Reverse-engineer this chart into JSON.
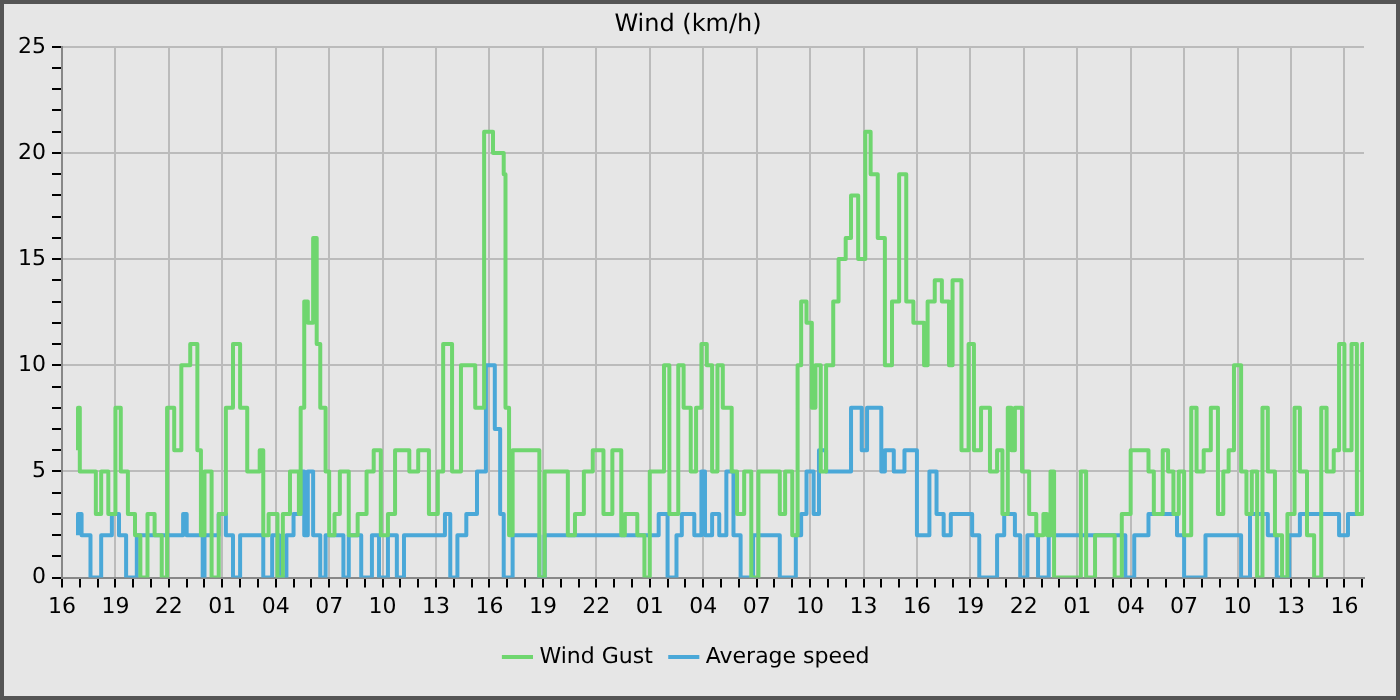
{
  "chart_data": {
    "type": "step",
    "title": "Wind (km/h)",
    "legend": "bottom",
    "grid": true,
    "xlim": [
      "--05-01T16:00",
      "--05-04T17:06"
    ],
    "ylim": [
      0,
      25
    ],
    "xticks": [
      {
        "value": "--05-01T16:00",
        "label": "16"
      },
      {
        "value": "--05-01T17:00",
        "label": null
      },
      {
        "value": "--05-01T18:00",
        "label": null
      },
      {
        "value": "--05-01T19:00",
        "label": "19"
      },
      {
        "value": "--05-01T20:00",
        "label": null
      },
      {
        "value": "--05-01T21:00",
        "label": null
      },
      {
        "value": "--05-01T22:00",
        "label": "22"
      },
      {
        "value": "--05-01T23:00",
        "label": null
      },
      {
        "value": "--05-02T00:00",
        "label": null
      },
      {
        "value": "--05-02T01:00",
        "label": "01"
      },
      {
        "value": "--05-02T02:00",
        "label": null
      },
      {
        "value": "--05-02T03:00",
        "label": null
      },
      {
        "value": "--05-02T04:00",
        "label": "04"
      },
      {
        "value": "--05-02T05:00",
        "label": null
      },
      {
        "value": "--05-02T06:00",
        "label": null
      },
      {
        "value": "--05-02T07:00",
        "label": "07"
      },
      {
        "value": "--05-02T08:00",
        "label": null
      },
      {
        "value": "--05-02T09:00",
        "label": null
      },
      {
        "value": "--05-02T10:00",
        "label": "10"
      },
      {
        "value": "--05-02T11:00",
        "label": null
      },
      {
        "value": "--05-02T12:00",
        "label": null
      },
      {
        "value": "--05-02T13:00",
        "label": "13"
      },
      {
        "value": "--05-02T14:00",
        "label": null
      },
      {
        "value": "--05-02T15:00",
        "label": null
      },
      {
        "value": "--05-02T16:00",
        "label": "16"
      },
      {
        "value": "--05-02T17:00",
        "label": null
      },
      {
        "value": "--05-02T18:00",
        "label": null
      },
      {
        "value": "--05-02T19:00",
        "label": "19"
      },
      {
        "value": "--05-02T20:00",
        "label": null
      },
      {
        "value": "--05-02T21:00",
        "label": null
      },
      {
        "value": "--05-02T22:00",
        "label": "22"
      },
      {
        "value": "--05-02T23:00",
        "label": null
      },
      {
        "value": "--05-03T00:00",
        "label": null
      },
      {
        "value": "--05-03T01:00",
        "label": "01"
      },
      {
        "value": "--05-03T02:00",
        "label": null
      },
      {
        "value": "--05-03T03:00",
        "label": null
      },
      {
        "value": "--05-03T04:00",
        "label": "04"
      },
      {
        "value": "--05-03T05:00",
        "label": null
      },
      {
        "value": "--05-03T06:00",
        "label": null
      },
      {
        "value": "--05-03T07:00",
        "label": "07"
      },
      {
        "value": "--05-03T08:00",
        "label": null
      },
      {
        "value": "--05-03T09:00",
        "label": null
      },
      {
        "value": "--05-03T10:00",
        "label": "10"
      },
      {
        "value": "--05-03T11:00",
        "label": null
      },
      {
        "value": "--05-03T12:00",
        "label": null
      },
      {
        "value": "--05-03T13:00",
        "label": "13"
      },
      {
        "value": "--05-03T14:00",
        "label": null
      },
      {
        "value": "--05-03T15:00",
        "label": null
      },
      {
        "value": "--05-03T16:00",
        "label": "16"
      },
      {
        "value": "--05-03T17:00",
        "label": null
      },
      {
        "value": "--05-03T18:00",
        "label": null
      },
      {
        "value": "--05-03T19:00",
        "label": "19"
      },
      {
        "value": "--05-03T20:00",
        "label": null
      },
      {
        "value": "--05-03T21:00",
        "label": null
      },
      {
        "value": "--05-03T22:00",
        "label": "22"
      },
      {
        "value": "--05-03T23:00",
        "label": null
      },
      {
        "value": "--05-04T00:00",
        "label": null
      },
      {
        "value": "--05-04T01:00",
        "label": "01"
      },
      {
        "value": "--05-04T02:00",
        "label": null
      },
      {
        "value": "--05-04T03:00",
        "label": null
      },
      {
        "value": "--05-04T04:00",
        "label": "04"
      },
      {
        "value": "--05-04T05:00",
        "label": null
      },
      {
        "value": "--05-04T06:00",
        "label": null
      },
      {
        "value": "--05-04T07:00",
        "label": "07"
      },
      {
        "value": "--05-04T08:00",
        "label": null
      },
      {
        "value": "--05-04T09:00",
        "label": null
      },
      {
        "value": "--05-04T10:00",
        "label": "10"
      },
      {
        "value": "--05-04T11:00",
        "label": null
      },
      {
        "value": "--05-04T12:00",
        "label": null
      },
      {
        "value": "--05-04T13:00",
        "label": "13"
      },
      {
        "value": "--05-04T14:00",
        "label": null
      },
      {
        "value": "--05-04T15:00",
        "label": null
      },
      {
        "value": "--05-04T16:00",
        "label": "16"
      },
      {
        "value": "--05-04T17:00",
        "label": null
      }
    ],
    "yticks": [
      0,
      {
        "value": 1,
        "label": null
      },
      {
        "value": 2,
        "label": null
      },
      {
        "value": 3,
        "label": null
      },
      {
        "value": 4,
        "label": null
      },
      5,
      {
        "value": 6,
        "label": null
      },
      {
        "value": 7,
        "label": null
      },
      {
        "value": 8,
        "label": null
      },
      {
        "value": 9,
        "label": null
      },
      10,
      {
        "value": 11,
        "label": null
      },
      {
        "value": 12,
        "label": null
      },
      {
        "value": 13,
        "label": null
      },
      {
        "value": 14,
        "label": null
      },
      15,
      {
        "value": 16,
        "label": null
      },
      {
        "value": 17,
        "label": null
      },
      {
        "value": 18,
        "label": null
      },
      {
        "value": 19,
        "label": null
      },
      20,
      {
        "value": 21,
        "label": null
      },
      {
        "value": 22,
        "label": null
      },
      {
        "value": 23,
        "label": null
      },
      {
        "value": 24,
        "label": null
      },
      25
    ],
    "series": [
      {
        "name": "Wind Gust",
        "color": "#6fd66f",
        "x": [
          "--05-01T16:54",
          "--05-01T17:00",
          "--05-01T17:54",
          "--05-01T18:12",
          "--05-01T18:36",
          "--05-01T19:00",
          "--05-01T19:18",
          "--05-01T19:42",
          "--05-01T20:06",
          "--05-01T20:24",
          "--05-01T20:48",
          "--05-01T21:12",
          "--05-01T21:36",
          "--05-01T21:54",
          "--05-01T22:18",
          "--05-01T22:42",
          "--05-01T23:12",
          "--05-01T23:36",
          "--05-01T23:48",
          "--05-02T00:00",
          "--05-02T00:24",
          "--05-02T00:48",
          "--05-02T01:12",
          "--05-02T01:36",
          "--05-02T02:00",
          "--05-02T02:24",
          "--05-02T03:06",
          "--05-02T03:18",
          "--05-02T03:36",
          "--05-02T04:06",
          "--05-02T04:24",
          "--05-02T04:48",
          "--05-02T05:18",
          "--05-02T05:24",
          "--05-02T05:36",
          "--05-02T05:48",
          "--05-02T06:06",
          "--05-02T06:18",
          "--05-02T06:30",
          "--05-02T06:48",
          "--05-02T07:00",
          "--05-02T07:18",
          "--05-02T07:36",
          "--05-02T08:06",
          "--05-02T08:36",
          "--05-02T09:06",
          "--05-02T09:30",
          "--05-02T09:54",
          "--05-02T10:18",
          "--05-02T10:42",
          "--05-02T11:30",
          "--05-02T12:00",
          "--05-02T12:36",
          "--05-02T13:06",
          "--05-02T13:24",
          "--05-02T13:54",
          "--05-02T14:24",
          "--05-02T15:12",
          "--05-02T15:42",
          "--05-02T16:12",
          "--05-02T16:48",
          "--05-02T16:54",
          "--05-02T17:06",
          "--05-02T17:18",
          "--05-02T18:48",
          "--05-02T19:06",
          "--05-02T20:24",
          "--05-02T20:48",
          "--05-02T21:18",
          "--05-02T21:48",
          "--05-02T22:24",
          "--05-02T22:54",
          "--05-02T23:24",
          "--05-02T23:36",
          "--05-03T00:18",
          "--05-03T00:42",
          "--05-03T01:00",
          "--05-03T01:48",
          "--05-03T02:06",
          "--05-03T02:36",
          "--05-03T02:54",
          "--05-03T03:18",
          "--05-03T03:36",
          "--05-03T03:54",
          "--05-03T04:12",
          "--05-03T04:30",
          "--05-03T04:48",
          "--05-03T05:06",
          "--05-03T05:36",
          "--05-03T05:54",
          "--05-03T06:18",
          "--05-03T06:42",
          "--05-03T07:06",
          "--05-03T08:18",
          "--05-03T08:36",
          "--05-03T09:00",
          "--05-03T09:18",
          "--05-03T09:30",
          "--05-03T09:48",
          "--05-03T10:06",
          "--05-03T10:18",
          "--05-03T10:36",
          "--05-03T10:54",
          "--05-03T11:18",
          "--05-03T11:36",
          "--05-03T12:00",
          "--05-03T12:18",
          "--05-03T12:42",
          "--05-03T13:06",
          "--05-03T13:24",
          "--05-03T13:48",
          "--05-03T14:12",
          "--05-03T14:36",
          "--05-03T15:00",
          "--05-03T15:24",
          "--05-03T15:48",
          "--05-03T16:24",
          "--05-03T16:36",
          "--05-03T17:00",
          "--05-03T17:24",
          "--05-03T17:48",
          "--05-03T18:00",
          "--05-03T18:30",
          "--05-03T18:54",
          "--05-03T19:12",
          "--05-03T19:36",
          "--05-03T20:06",
          "--05-03T20:30",
          "--05-03T20:48",
          "--05-03T21:06",
          "--05-03T21:18",
          "--05-03T21:30",
          "--05-03T21:54",
          "--05-03T22:18",
          "--05-03T22:42",
          "--05-03T23:06",
          "--05-03T23:18",
          "--05-03T23:30",
          "--05-03T23:42",
          "--05-04T00:00",
          "--05-04T00:24",
          "--05-04T00:48",
          "--05-04T01:12",
          "--05-04T01:30",
          "--05-04T02:00",
          "--05-04T03:06",
          "--05-04T03:30",
          "--05-04T04:00",
          "--05-04T05:00",
          "--05-04T05:18",
          "--05-04T05:48",
          "--05-04T06:06",
          "--05-04T06:24",
          "--05-04T06:42",
          "--05-04T07:00",
          "--05-04T07:24",
          "--05-04T07:42",
          "--05-04T08:06",
          "--05-04T08:30",
          "--05-04T08:54",
          "--05-04T09:12",
          "--05-04T09:30",
          "--05-04T09:48",
          "--05-04T10:12",
          "--05-04T10:30",
          "--05-04T10:48",
          "--05-04T11:06",
          "--05-04T11:24",
          "--05-04T11:42",
          "--05-04T12:06",
          "--05-04T12:30",
          "--05-04T12:48",
          "--05-04T13:12",
          "--05-04T13:30",
          "--05-04T13:54",
          "--05-04T14:18",
          "--05-04T14:42",
          "--05-04T15:00",
          "--05-04T15:24",
          "--05-04T15:42",
          "--05-04T16:00",
          "--05-04T16:24",
          "--05-04T16:42",
          "--05-04T17:00",
          "--05-04T17:06"
        ],
        "values": [
          6,
          8,
          5,
          3,
          5,
          3,
          8,
          5,
          3,
          2,
          0,
          3,
          2,
          0,
          8,
          6,
          10,
          11,
          6,
          2,
          5,
          0,
          3,
          8,
          11,
          8,
          5,
          6,
          2,
          3,
          0,
          3,
          5,
          3,
          8,
          13,
          12,
          16,
          11,
          8,
          5,
          2,
          3,
          5,
          2,
          3,
          5,
          6,
          2,
          3,
          6,
          5,
          6,
          3,
          5,
          11,
          5,
          10,
          8,
          21,
          20,
          19,
          8,
          2,
          6,
          0,
          5,
          2,
          3,
          5,
          6,
          3,
          6,
          2,
          3,
          2,
          0,
          5,
          10,
          3,
          10,
          8,
          5,
          8,
          11,
          10,
          5,
          10,
          8,
          5,
          3,
          5,
          0,
          5,
          3,
          5,
          2,
          10,
          13,
          12,
          8,
          10,
          5,
          10,
          13,
          15,
          16,
          18,
          15,
          21,
          19,
          16,
          10,
          13,
          19,
          13,
          12,
          10,
          13,
          14,
          13,
          10,
          14,
          6,
          11,
          6,
          8,
          5,
          6,
          3,
          8,
          6,
          8,
          5,
          3,
          2,
          3,
          2,
          5,
          0,
          0,
          0,
          0,
          5,
          0,
          2,
          0,
          3,
          6,
          5,
          3,
          6,
          5,
          3,
          5,
          2,
          8,
          5,
          6,
          8,
          3,
          5,
          6,
          10,
          5,
          3,
          5,
          0,
          8,
          5,
          2,
          0,
          3,
          8,
          5,
          2,
          0,
          8,
          5,
          6,
          11,
          6,
          11,
          3,
          11
        ]
      },
      {
        "name": "Average speed",
        "color": "#4aa8d8",
        "x": [
          "--05-01T16:54",
          "--05-01T17:06",
          "--05-01T17:36",
          "--05-01T18:12",
          "--05-01T18:48",
          "--05-01T19:12",
          "--05-01T19:36",
          "--05-01T20:12",
          "--05-01T22:48",
          "--05-01T23:00",
          "--05-01T23:54",
          "--05-02T00:00",
          "--05-02T00:48",
          "--05-02T01:12",
          "--05-02T01:36",
          "--05-02T02:00",
          "--05-02T03:18",
          "--05-02T03:48",
          "--05-02T04:12",
          "--05-02T04:36",
          "--05-02T05:00",
          "--05-02T05:24",
          "--05-02T05:36",
          "--05-02T05:48",
          "--05-02T06:06",
          "--05-02T06:30",
          "--05-02T06:48",
          "--05-02T07:48",
          "--05-02T08:06",
          "--05-02T08:48",
          "--05-02T09:24",
          "--05-02T09:48",
          "--05-02T10:18",
          "--05-02T10:48",
          "--05-02T11:12",
          "--05-02T11:48",
          "--05-02T13:30",
          "--05-02T13:48",
          "--05-02T14:12",
          "--05-02T14:42",
          "--05-02T15:18",
          "--05-02T15:48",
          "--05-02T16:18",
          "--05-02T16:36",
          "--05-02T16:48",
          "--05-02T17:18",
          "--05-02T18:48",
          "--05-02T19:06",
          "--05-03T01:30",
          "--05-03T02:00",
          "--05-03T02:30",
          "--05-03T02:48",
          "--05-03T03:30",
          "--05-03T03:54",
          "--05-03T04:06",
          "--05-03T04:30",
          "--05-03T04:54",
          "--05-03T05:18",
          "--05-03T05:42",
          "--05-03T06:06",
          "--05-03T06:48",
          "--05-03T08:18",
          "--05-03T09:12",
          "--05-03T09:30",
          "--05-03T09:48",
          "--05-03T10:12",
          "--05-03T10:30",
          "--05-03T10:54",
          "--05-03T12:18",
          "--05-03T12:54",
          "--05-03T13:12",
          "--05-03T14:00",
          "--05-03T14:12",
          "--05-03T14:42",
          "--05-03T15:18",
          "--05-03T16:00",
          "--05-03T16:42",
          "--05-03T17:06",
          "--05-03T17:30",
          "--05-03T17:54",
          "--05-03T19:06",
          "--05-03T19:30",
          "--05-03T20:30",
          "--05-03T20:54",
          "--05-03T21:30",
          "--05-03T21:48",
          "--05-03T22:12",
          "--05-03T22:48",
          "--05-03T23:24",
          "--05-04T03:42",
          "--05-04T04:12",
          "--05-04T05:00",
          "--05-04T06:36",
          "--05-04T07:00",
          "--05-04T08:12",
          "--05-04T10:12",
          "--05-04T10:42",
          "--05-04T11:42",
          "--05-04T12:12",
          "--05-04T12:54",
          "--05-04T13:30",
          "--05-04T15:42",
          "--05-04T16:12",
          "--05-04T16:42"
        ],
        "values": [
          2,
          3,
          2,
          0,
          2,
          3,
          2,
          0,
          2,
          3,
          2,
          0,
          2,
          3,
          2,
          0,
          2,
          0,
          2,
          0,
          2,
          3,
          5,
          2,
          5,
          2,
          0,
          2,
          0,
          2,
          0,
          2,
          0,
          2,
          0,
          2,
          2,
          3,
          0,
          2,
          3,
          5,
          10,
          7,
          3,
          0,
          2,
          0,
          2,
          3,
          0,
          2,
          3,
          2,
          5,
          2,
          3,
          2,
          5,
          2,
          0,
          2,
          0,
          2,
          3,
          5,
          3,
          6,
          5,
          8,
          6,
          8,
          5,
          6,
          5,
          6,
          2,
          5,
          3,
          2,
          3,
          2,
          0,
          2,
          3,
          2,
          0,
          2,
          0,
          2,
          0,
          2,
          3,
          2,
          0,
          2,
          0,
          3,
          2,
          0,
          2,
          3,
          2,
          3
        ]
      }
    ]
  }
}
